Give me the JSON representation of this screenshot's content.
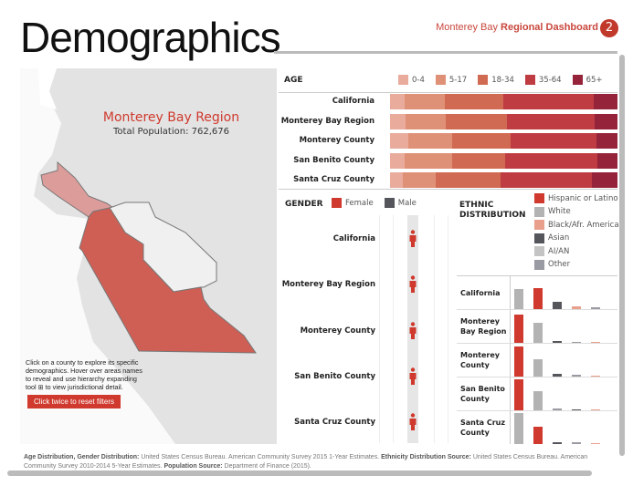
{
  "header": {
    "title": "Demographics",
    "dashboard_light": "Monterey Bay",
    "dashboard_bold": "Regional Dashboard",
    "page_badge": "2"
  },
  "map": {
    "title": "Monterey Bay Region",
    "population": "Total Population: 762,676",
    "instructions": "Click on a county to explore its specific demographics. Hover over areas names to reveal and use hierarchy expanding tool ⊞ to view jurisdictional detail.",
    "reset_button": "Click twice to reset filters",
    "county_colors": {
      "Santa Cruz County": "#dc9c9a",
      "Monterey County": "#cf5f55",
      "San Benito County": "#f0f0f0"
    }
  },
  "age": {
    "title": "AGE",
    "legend": [
      {
        "label": "0-4",
        "color": "#e8ab9c"
      },
      {
        "label": "5-17",
        "color": "#df9177"
      },
      {
        "label": "18-34",
        "color": "#d16a52"
      },
      {
        "label": "35-64",
        "color": "#bf3d42"
      },
      {
        "label": "65+",
        "color": "#952339"
      }
    ],
    "rows": [
      {
        "label": "California",
        "values": [
          6.4,
          17.7,
          25.8,
          39.5,
          10.6
        ]
      },
      {
        "label": "Monterey Bay Region",
        "values": [
          7.0,
          17.6,
          26.7,
          38.5,
          10.2
        ]
      },
      {
        "label": "Monterey County",
        "values": [
          7.9,
          19.4,
          25.8,
          37.7,
          9.2
        ]
      },
      {
        "label": "San Benito County",
        "values": [
          6.4,
          20.9,
          23.4,
          40.3,
          9.0
        ]
      },
      {
        "label": "Santa Cruz County",
        "values": [
          5.6,
          14.6,
          28.5,
          39.9,
          11.4
        ]
      }
    ]
  },
  "gender": {
    "title": "GENDER",
    "legend": [
      {
        "label": "Female",
        "color": "#d0392d"
      },
      {
        "label": "Male",
        "color": "#55565c"
      }
    ],
    "rows": [
      "California",
      "Monterey Bay Region",
      "Monterey County",
      "San Benito County",
      "Santa Cruz County"
    ]
  },
  "ethnic": {
    "title": "ETHNIC DISTRIBUTION",
    "legend": [
      {
        "label": "Hispanic or Latino",
        "color": "#d0392d"
      },
      {
        "label": "White",
        "color": "#b3b3b3"
      },
      {
        "label": "Black/Afr. American",
        "color": "#e8a08c"
      },
      {
        "label": "Asian",
        "color": "#55565c"
      },
      {
        "label": "AI/AN",
        "color": "#c4c4c4"
      },
      {
        "label": "Other",
        "color": "#9a9aa2"
      }
    ],
    "rows": [
      {
        "label": "California",
        "bars": [
          {
            "group": "White",
            "value": 38.5
          },
          {
            "group": "Hispanic or Latino",
            "value": 38.6
          },
          {
            "group": "Asian",
            "value": 13.5
          },
          {
            "group": "Black/Afr. American",
            "value": 5.6
          },
          {
            "group": "Other",
            "value": 3.3
          }
        ]
      },
      {
        "label": "Monterey Bay Region",
        "bars": [
          {
            "group": "Hispanic or Latino",
            "value": 54
          },
          {
            "group": "White",
            "value": 37
          },
          {
            "group": "Asian",
            "value": 4
          },
          {
            "group": "Other",
            "value": 2.5
          },
          {
            "group": "Black/Afr. American",
            "value": 1.5
          }
        ]
      },
      {
        "label": "Monterey County",
        "bars": [
          {
            "group": "Hispanic or Latino",
            "value": 57
          },
          {
            "group": "White",
            "value": 32
          },
          {
            "group": "Asian",
            "value": 5.5
          },
          {
            "group": "Other",
            "value": 3
          },
          {
            "group": "Black/Afr. American",
            "value": 2.5
          }
        ]
      },
      {
        "label": "San Benito County",
        "bars": [
          {
            "group": "Hispanic or Latino",
            "value": 58
          },
          {
            "group": "White",
            "value": 36
          },
          {
            "group": "Other",
            "value": 3
          },
          {
            "group": "Asian",
            "value": 2
          },
          {
            "group": "Black/Afr. American",
            "value": 1
          }
        ]
      },
      {
        "label": "Santa Cruz County",
        "bars": [
          {
            "group": "White",
            "value": 58
          },
          {
            "group": "Hispanic or Latino",
            "value": 33
          },
          {
            "group": "Asian",
            "value": 4
          },
          {
            "group": "Other",
            "value": 3
          },
          {
            "group": "Black/Afr. American",
            "value": 1
          }
        ]
      }
    ]
  },
  "footer": {
    "b1": "Age Distribution, Gender Distribution:",
    "t1": " United States Census Bureau. American Community Survey 2015 1-Year Estimates. ",
    "b2": "Ethnicity Distribution Source:",
    "t2": " United States Census Bureau. American Community Survey 2010-2014 5-Year Estimates. ",
    "b3": "Population Source:",
    "t3": " Department of Finance (2015)."
  }
}
